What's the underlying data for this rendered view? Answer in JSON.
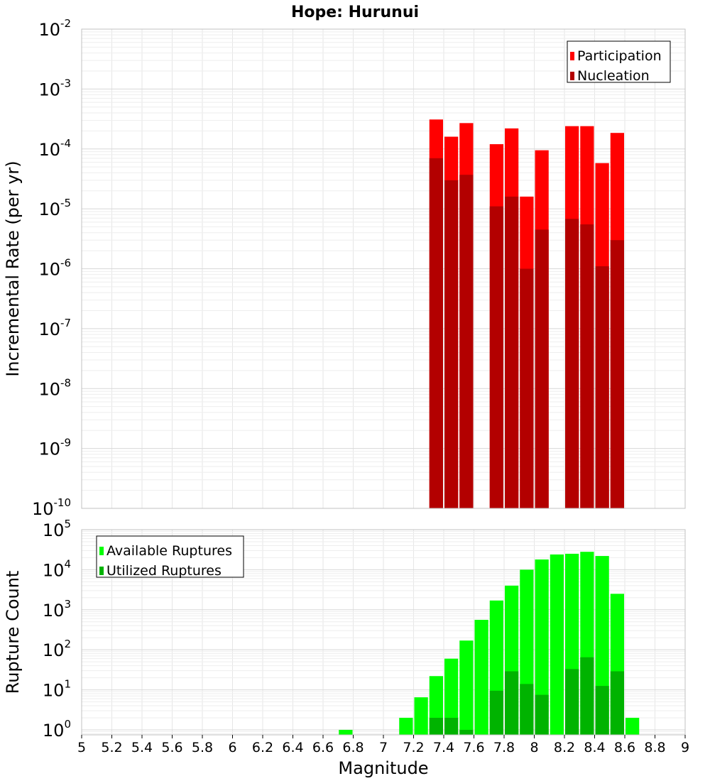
{
  "title": "Hope: Hurunui",
  "colors": {
    "participation": "#ff0000",
    "nucleation": "#b30000",
    "available": "#00ff00",
    "utilized": "#00b300",
    "grid": "#e6e6e6",
    "frame": "#c0c0c0"
  },
  "chart_data": [
    {
      "type": "bar",
      "ylabel": "Incremental Rate (per yr)",
      "yscale": "log",
      "ylim": [
        1e-10,
        0.01
      ],
      "y_ticks": [
        {
          "base": "10",
          "exp": "-10"
        },
        {
          "base": "10",
          "exp": "-9"
        },
        {
          "base": "10",
          "exp": "-8"
        },
        {
          "base": "10",
          "exp": "-7"
        },
        {
          "base": "10",
          "exp": "-6"
        },
        {
          "base": "10",
          "exp": "-5"
        },
        {
          "base": "10",
          "exp": "-4"
        },
        {
          "base": "10",
          "exp": "-3"
        },
        {
          "base": "10",
          "exp": "-2"
        }
      ],
      "x": [
        7.35,
        7.45,
        7.55,
        7.75,
        7.85,
        7.95,
        8.05,
        8.25,
        8.35,
        8.45,
        8.55
      ],
      "series": [
        {
          "name": "Participation",
          "values": [
            0.00031,
            0.00016,
            0.00027,
            0.00012,
            0.00022,
            1.6e-05,
            9.5e-05,
            0.00024,
            0.00024,
            5.8e-05,
            0.000185
          ]
        },
        {
          "name": "Nucleation",
          "values": [
            7e-05,
            3e-05,
            3.7e-05,
            1.1e-05,
            1.6e-05,
            1e-06,
            4.5e-06,
            6.8e-06,
            5.5e-06,
            1.1e-06,
            3e-06
          ]
        }
      ],
      "legend": "top-right"
    },
    {
      "type": "bar",
      "xlabel": "Magnitude",
      "ylabel": "Rupture Count",
      "yscale": "log",
      "xlim": [
        5,
        9
      ],
      "x_ticks": [
        "5",
        "5.2",
        "5.4",
        "5.6",
        "5.8",
        "6",
        "6.2",
        "6.4",
        "6.6",
        "6.8",
        "7",
        "7.2",
        "7.4",
        "7.6",
        "7.8",
        "8",
        "8.2",
        "8.4",
        "8.6",
        "8.8",
        "9"
      ],
      "y_ticks": [
        {
          "base": "10",
          "exp": "0"
        },
        {
          "base": "10",
          "exp": "1"
        },
        {
          "base": "10",
          "exp": "2"
        },
        {
          "base": "10",
          "exp": "3"
        },
        {
          "base": "10",
          "exp": "4"
        },
        {
          "base": "10",
          "exp": "5"
        }
      ],
      "ylim": [
        0.75,
        100000.0
      ],
      "x": [
        6.75,
        7.15,
        7.25,
        7.35,
        7.45,
        7.55,
        7.65,
        7.75,
        7.85,
        7.95,
        8.05,
        8.15,
        8.25,
        8.35,
        8.45,
        8.55,
        8.65
      ],
      "series": [
        {
          "name": "Available Ruptures",
          "values": [
            1,
            2,
            6.5,
            22,
            60,
            170,
            560,
            1700,
            4000,
            10000,
            18000,
            24000,
            25000,
            28000,
            22000,
            2500,
            2
          ]
        },
        {
          "name": "Utilized Ruptures",
          "values": [
            0,
            0,
            0,
            2,
            2,
            1,
            0,
            9.5,
            29,
            14,
            7.5,
            0,
            33,
            65,
            12.5,
            29,
            0
          ]
        }
      ],
      "legend": "top-left"
    }
  ]
}
